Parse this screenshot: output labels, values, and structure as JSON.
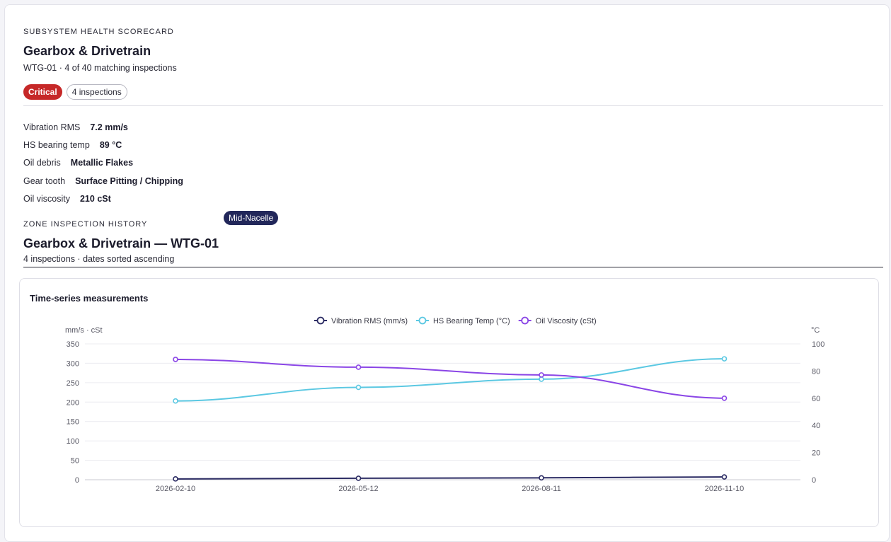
{
  "scorecard": {
    "eyebrow": "SUBSYSTEM HEALTH SCORECARD",
    "title": "Gearbox & Drivetrain",
    "subtitle": "WTG-01 · 4 of 40 matching inspections",
    "status_badge": "Critical",
    "count_badge": "4 inspections",
    "colors": {
      "critical": "#c62828",
      "zone": "#22275a"
    },
    "metrics": [
      {
        "label": "Vibration RMS",
        "value": "7.2 mm/s"
      },
      {
        "label": "HS bearing temp",
        "value": "89 °C"
      },
      {
        "label": "Oil debris",
        "value": "Metallic Flakes"
      },
      {
        "label": "Gear tooth",
        "value": "Surface Pitting / Chipping"
      },
      {
        "label": "Oil viscosity",
        "value": "210 cSt"
      }
    ]
  },
  "history": {
    "eyebrow": "ZONE INSPECTION HISTORY",
    "zone": "Mid-Nacelle",
    "title": "Gearbox & Drivetrain — WTG-01",
    "subtitle": "4 inspections · dates sorted ascending"
  },
  "chart_title": "Time-series measurements",
  "chart_data": {
    "type": "line",
    "x": [
      "2026-02-10",
      "2026-05-12",
      "2026-08-11",
      "2026-11-10"
    ],
    "left_axis_label": "mm/s · cSt",
    "right_axis_label": "°C",
    "ylim_left": [
      0,
      350
    ],
    "yticks_left": [
      0,
      50,
      100,
      150,
      200,
      250,
      300,
      350
    ],
    "ylim_right": [
      0,
      100
    ],
    "yticks_right": [
      0,
      20,
      40,
      60,
      80,
      100
    ],
    "grid": true,
    "legend_position": "top",
    "series": [
      {
        "name": "Vibration RMS (mm/s)",
        "axis": "left",
        "color": "#2b2b63",
        "values": [
          2.1,
          3.8,
          4.9,
          7.2
        ]
      },
      {
        "name": "HS Bearing Temp (°C)",
        "axis": "right",
        "color": "#5bc8e2",
        "values": [
          58,
          68,
          74,
          89
        ]
      },
      {
        "name": "Oil Viscosity (cSt)",
        "axis": "left",
        "color": "#8a45e6",
        "values": [
          310,
          290,
          270,
          210
        ]
      }
    ]
  }
}
